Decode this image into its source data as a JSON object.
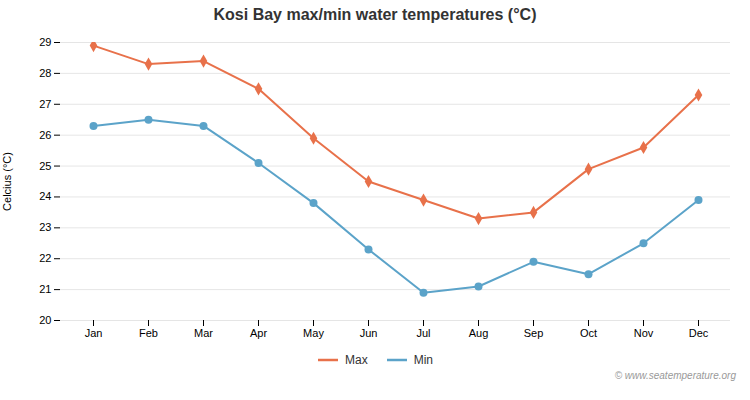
{
  "chart_data": {
    "type": "line",
    "title": "Kosi Bay max/min water temperatures (°C)",
    "ylabel": "Celcius (°C)",
    "categories": [
      "Jan",
      "Feb",
      "Mar",
      "Apr",
      "May",
      "Jun",
      "Jul",
      "Aug",
      "Sep",
      "Oct",
      "Nov",
      "Dec"
    ],
    "series": [
      {
        "name": "Max",
        "color": "#E8714A",
        "marker": "diamond",
        "values": [
          28.9,
          28.3,
          28.4,
          27.5,
          25.9,
          24.5,
          23.9,
          23.3,
          23.5,
          24.9,
          25.6,
          27.3
        ]
      },
      {
        "name": "Min",
        "color": "#5BA3C9",
        "marker": "circle",
        "values": [
          26.3,
          26.5,
          26.3,
          25.1,
          23.8,
          22.3,
          20.9,
          21.1,
          21.9,
          21.5,
          22.5,
          23.9
        ]
      }
    ],
    "ylim": [
      20,
      29
    ],
    "yticks": [
      20,
      21,
      22,
      23,
      24,
      25,
      26,
      27,
      28,
      29
    ],
    "grid": true,
    "legend": "bottom",
    "watermark": "© www.seatemperature.org"
  }
}
